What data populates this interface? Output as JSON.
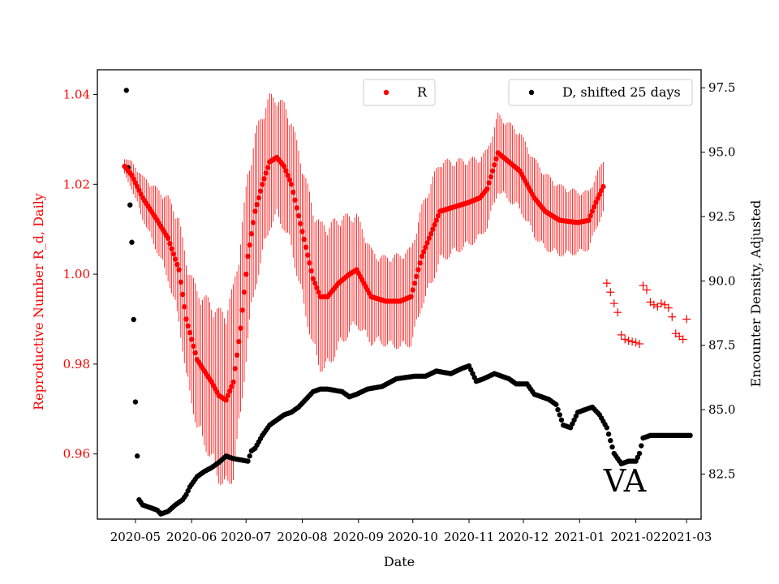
{
  "chart_data": {
    "type": "scatter",
    "title": "",
    "annotation": "VA",
    "xlabel": "Date",
    "ylabel_left": "Reproductive Number R_d, Daily",
    "ylabel_right": "Encounter Density, Adjusted",
    "x_ticks": [
      "2020-05",
      "2020-06",
      "2020-07",
      "2020-08",
      "2020-09",
      "2020-10",
      "2020-11",
      "2020-12",
      "2021-01",
      "2021-02",
      "2021-03"
    ],
    "x_tick_days": [
      6,
      37,
      67,
      98,
      129,
      159,
      190,
      220,
      251,
      282,
      310
    ],
    "xlim_days": [
      -15,
      318
    ],
    "ylim_left": [
      0.9455,
      1.0455
    ],
    "ylim_right": [
      80.75,
      98.2
    ],
    "yticks_left": [
      "0.96",
      "0.98",
      "1.00",
      "1.02",
      "1.04"
    ],
    "yticks_right": [
      "82.5",
      "85.0",
      "87.5",
      "90.0",
      "92.5",
      "95.0",
      "97.5"
    ],
    "colors": {
      "R": "#ff0000",
      "D": "#000000",
      "left_axis_text": "#ff0000"
    },
    "legend": {
      "R": "R",
      "D": "D, shifted 25 days"
    },
    "R_knots": [
      [
        0,
        1.024
      ],
      [
        4,
        1.022
      ],
      [
        10,
        1.017
      ],
      [
        18,
        1.012
      ],
      [
        24,
        1.008
      ],
      [
        30,
        1.001
      ],
      [
        34,
        0.99
      ],
      [
        40,
        0.981
      ],
      [
        48,
        0.976
      ],
      [
        52,
        0.973
      ],
      [
        56,
        0.972
      ],
      [
        60,
        0.976
      ],
      [
        64,
        0.988
      ],
      [
        68,
        1.004
      ],
      [
        72,
        1.014
      ],
      [
        76,
        1.02
      ],
      [
        80,
        1.025
      ],
      [
        84,
        1.026
      ],
      [
        88,
        1.024
      ],
      [
        92,
        1.02
      ],
      [
        96,
        1.013
      ],
      [
        100,
        1.006
      ],
      [
        104,
        0.999
      ],
      [
        108,
        0.995
      ],
      [
        112,
        0.995
      ],
      [
        118,
        0.998
      ],
      [
        124,
        1.0
      ],
      [
        128,
        1.001
      ],
      [
        132,
        0.998
      ],
      [
        136,
        0.995
      ],
      [
        144,
        0.994
      ],
      [
        152,
        0.994
      ],
      [
        158,
        0.995
      ],
      [
        164,
        1.004
      ],
      [
        170,
        1.01
      ],
      [
        174,
        1.014
      ],
      [
        182,
        1.015
      ],
      [
        190,
        1.016
      ],
      [
        196,
        1.017
      ],
      [
        200,
        1.019
      ],
      [
        206,
        1.027
      ],
      [
        212,
        1.025
      ],
      [
        218,
        1.023
      ],
      [
        226,
        1.017
      ],
      [
        232,
        1.014
      ],
      [
        240,
        1.012
      ],
      [
        250,
        1.0115
      ],
      [
        256,
        1.012
      ],
      [
        260,
        1.016
      ],
      [
        264,
        1.0195
      ]
    ],
    "R_err_knots": [
      [
        0,
        0.002
      ],
      [
        20,
        0.008
      ],
      [
        40,
        0.016
      ],
      [
        60,
        0.022
      ],
      [
        84,
        0.014
      ],
      [
        110,
        0.017
      ],
      [
        140,
        0.01
      ],
      [
        170,
        0.012
      ],
      [
        200,
        0.009
      ],
      [
        230,
        0.009
      ],
      [
        264,
        0.006
      ]
    ],
    "R_crosses": [
      [
        266,
        0.998
      ],
      [
        268,
        0.996
      ],
      [
        270,
        0.9935
      ],
      [
        272,
        0.9915
      ],
      [
        274,
        0.9865
      ],
      [
        276,
        0.9855
      ],
      [
        278,
        0.9852
      ],
      [
        280,
        0.985
      ],
      [
        282,
        0.9848
      ],
      [
        284,
        0.9845
      ],
      [
        286,
        0.9975
      ],
      [
        288,
        0.9965
      ],
      [
        290,
        0.9938
      ],
      [
        292,
        0.9932
      ],
      [
        294,
        0.9928
      ],
      [
        296,
        0.9935
      ],
      [
        298,
        0.9932
      ],
      [
        300,
        0.9925
      ],
      [
        302,
        0.9905
      ],
      [
        304,
        0.9868
      ],
      [
        306,
        0.9862
      ],
      [
        308,
        0.9855
      ],
      [
        310,
        0.99
      ]
    ],
    "D_knots": [
      [
        1,
        97.4
      ],
      [
        2,
        94.4
      ],
      [
        4,
        91.5
      ],
      [
        5,
        88.5
      ],
      [
        6,
        85.3
      ],
      [
        7,
        83.2
      ],
      [
        8,
        81.5
      ],
      [
        10,
        81.3
      ],
      [
        14,
        81.2
      ],
      [
        18,
        81.1
      ],
      [
        20,
        80.95
      ],
      [
        24,
        81.05
      ],
      [
        28,
        81.3
      ],
      [
        32,
        81.5
      ],
      [
        34,
        81.7
      ],
      [
        36,
        82.0
      ],
      [
        38,
        82.2
      ],
      [
        40,
        82.4
      ],
      [
        44,
        82.6
      ],
      [
        48,
        82.75
      ],
      [
        52,
        82.95
      ],
      [
        56,
        83.2
      ],
      [
        60,
        83.1
      ],
      [
        64,
        83.05
      ],
      [
        68,
        83.0
      ],
      [
        70,
        83.4
      ],
      [
        72,
        83.5
      ],
      [
        76,
        84.0
      ],
      [
        80,
        84.4
      ],
      [
        84,
        84.6
      ],
      [
        88,
        84.8
      ],
      [
        92,
        84.9
      ],
      [
        96,
        85.1
      ],
      [
        100,
        85.4
      ],
      [
        104,
        85.7
      ],
      [
        108,
        85.8
      ],
      [
        112,
        85.8
      ],
      [
        120,
        85.7
      ],
      [
        124,
        85.5
      ],
      [
        128,
        85.6
      ],
      [
        134,
        85.8
      ],
      [
        142,
        85.9
      ],
      [
        150,
        86.2
      ],
      [
        160,
        86.3
      ],
      [
        166,
        86.3
      ],
      [
        172,
        86.5
      ],
      [
        180,
        86.4
      ],
      [
        186,
        86.6
      ],
      [
        190,
        86.7
      ],
      [
        194,
        86.1
      ],
      [
        198,
        86.2
      ],
      [
        204,
        86.4
      ],
      [
        212,
        86.2
      ],
      [
        216,
        86.0
      ],
      [
        222,
        86.0
      ],
      [
        226,
        85.6
      ],
      [
        230,
        85.5
      ],
      [
        234,
        85.4
      ],
      [
        238,
        85.2
      ],
      [
        242,
        84.4
      ],
      [
        246,
        84.3
      ],
      [
        250,
        84.9
      ],
      [
        254,
        85.0
      ],
      [
        258,
        85.1
      ],
      [
        262,
        84.8
      ],
      [
        266,
        84.3
      ],
      [
        270,
        83.3
      ],
      [
        274,
        82.9
      ],
      [
        278,
        83.0
      ],
      [
        282,
        83.0
      ],
      [
        284,
        83.3
      ],
      [
        286,
        83.9
      ],
      [
        290,
        84.0
      ],
      [
        300,
        84.0
      ],
      [
        312,
        84.0
      ]
    ]
  }
}
